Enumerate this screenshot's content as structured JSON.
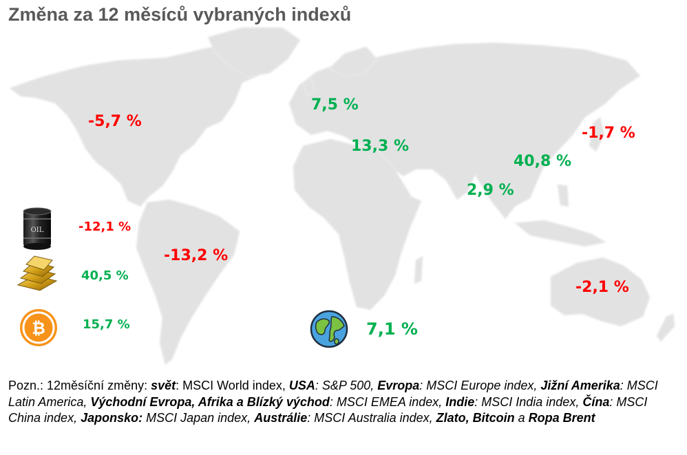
{
  "title": "Změna za 12 měsíců vybraných indexů",
  "regions": {
    "usa": "-5,7 %",
    "europe": "7,5 %",
    "emea": "13,3 %",
    "india": "2,9 %",
    "china": "40,8 %",
    "japan": "-1,7 %",
    "latam": "-13,2 %",
    "australia": "-2,1 %"
  },
  "commodities": {
    "oil_icon": "oil-barrel-icon",
    "oil_barrel_text": "OIL",
    "oil": "-12,1 %",
    "gold_icon": "gold-bars-icon",
    "gold": "40,5 %",
    "bitcoin_icon": "bitcoin-icon",
    "bitcoin": "15,7 %"
  },
  "world": {
    "icon": "globe-icon",
    "value": "7,1 %"
  },
  "colors": {
    "positive": "#00b050",
    "negative": "#ff0000",
    "title": "#595959",
    "map": "#e2e2e2"
  },
  "note": {
    "t1": "Pozn.: 12měsíční změny: ",
    "k1": "svět",
    "v1": ": MSCI World index, ",
    "k2": "USA",
    "v2": ": S&P 500, ",
    "k3": "Evropa",
    "v3": ": MSCI Europe index, ",
    "k4": "Jižní Amerika",
    "v4": ": MSCI Latin America, ",
    "k5": "Východní Evropa, Afrika a Blízký východ",
    "v5": ": MSCI EMEA index, ",
    "k6": "Indie",
    "v6": ": MSCI India index, ",
    "k7": "Čína",
    "v7": ": MSCI China index, ",
    "k8": "Japonsko:",
    "v8": " MSCI Japan index, ",
    "k9": "Austrálie",
    "v9": ": MSCI Australia index, ",
    "k10": "Zlato, Bitcoin",
    "v10": " a ",
    "k11": "Ropa Brent"
  }
}
